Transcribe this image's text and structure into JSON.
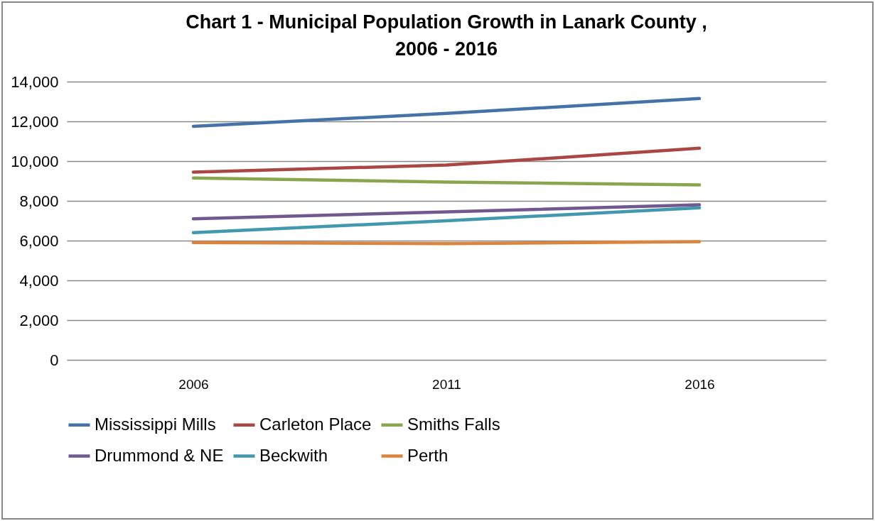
{
  "chart_data": {
    "type": "line",
    "title": "Chart 1 - Municipal Population Growth in Lanark County , 2006 - 2016",
    "categories": [
      "2006",
      "2011",
      "2016"
    ],
    "series": [
      {
        "name": "Mississippi Mills",
        "color": "#4572a7",
        "values": [
          11750,
          12400,
          13150
        ]
      },
      {
        "name": "Carleton Place",
        "color": "#aa4643",
        "values": [
          9450,
          9800,
          10650
        ]
      },
      {
        "name": "Smiths Falls",
        "color": "#89a54e",
        "values": [
          9150,
          8950,
          8800
        ]
      },
      {
        "name": "Drummond & NE",
        "color": "#71588f",
        "values": [
          7100,
          7450,
          7800
        ]
      },
      {
        "name": "Beckwith",
        "color": "#4198af",
        "values": [
          6400,
          7000,
          7650
        ]
      },
      {
        "name": "Perth",
        "color": "#db843d",
        "values": [
          5900,
          5850,
          5950
        ]
      }
    ],
    "ylim": [
      0,
      14000
    ],
    "yticks": [
      0,
      {
        "value": 2000,
        "label": "2,000"
      },
      {
        "value": 4000,
        "label": "4,000"
      },
      {
        "value": 6000,
        "label": "6,000"
      },
      {
        "value": 8000,
        "label": "8,000"
      },
      {
        "value": 10000,
        "label": "10,000"
      },
      {
        "value": 12000,
        "label": "12,000"
      },
      {
        "value": 14000,
        "label": "14,000"
      }
    ],
    "grid": "y",
    "legend": "bottom",
    "marker": "none",
    "line_style": "solid"
  }
}
